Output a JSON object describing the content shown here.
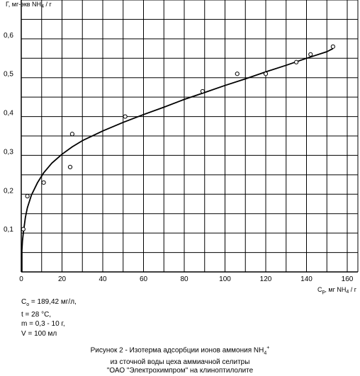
{
  "chart_data": {
    "type": "scatter",
    "ylabel_prefix": "Г, мг-экв NH",
    "ylabel_sub": "4",
    "ylabel_suffix": " / г",
    "xlabel_prefix": "С",
    "xlabel_sub": "р",
    "xlabel_suffix": ", мг NH",
    "xlabel_sub2": "4",
    "xlabel_suffix2": " / г",
    "xlim": [
      0,
      160
    ],
    "ylim": [
      0,
      0.7
    ],
    "x_ticks": [
      "0",
      "20",
      "40",
      "60",
      "80",
      "100",
      "120",
      "140",
      "160"
    ],
    "y_ticks": [
      "0,1",
      "0,2",
      "0,3",
      "0,4",
      "0,5",
      "0,6"
    ],
    "grid": true,
    "series": [
      {
        "kind": "points",
        "x": [
          1,
          3,
          11,
          24,
          25,
          51,
          89,
          106,
          120,
          135,
          142,
          153
        ],
        "y": [
          0.11,
          0.195,
          0.23,
          0.27,
          0.355,
          0.4,
          0.465,
          0.51,
          0.51,
          0.54,
          0.56,
          0.58
        ]
      },
      {
        "kind": "fit-curve",
        "x": [
          0.3,
          0.6,
          1,
          2,
          3,
          5,
          8,
          11,
          15,
          20,
          25,
          30,
          40,
          50,
          60,
          70,
          80,
          90,
          100,
          110,
          120,
          130,
          140,
          150,
          153
        ],
        "y": [
          0.055,
          0.08,
          0.1,
          0.14,
          0.165,
          0.198,
          0.23,
          0.255,
          0.28,
          0.303,
          0.322,
          0.338,
          0.363,
          0.385,
          0.405,
          0.424,
          0.444,
          0.462,
          0.48,
          0.497,
          0.515,
          0.532,
          0.55,
          0.567,
          0.575
        ]
      }
    ]
  },
  "params": {
    "c0_prefix": "С",
    "c0_sub": "о",
    "c0_value": " = 189,42 мг/л,",
    "t": "t = 28 °С,",
    "m": "m = 0,3 - 10 г,",
    "v": "V = 100 мл"
  },
  "caption": {
    "line1": "Рисунок 2 - Изотерма адсорбции ионов аммония NH",
    "line1_sub": "4",
    "line1_sup": "+",
    "line2": "из сточной воды цеха аммиачной селитры",
    "line3": "\"ОАО \"Электрохимпром\" на клиноптилолите"
  }
}
